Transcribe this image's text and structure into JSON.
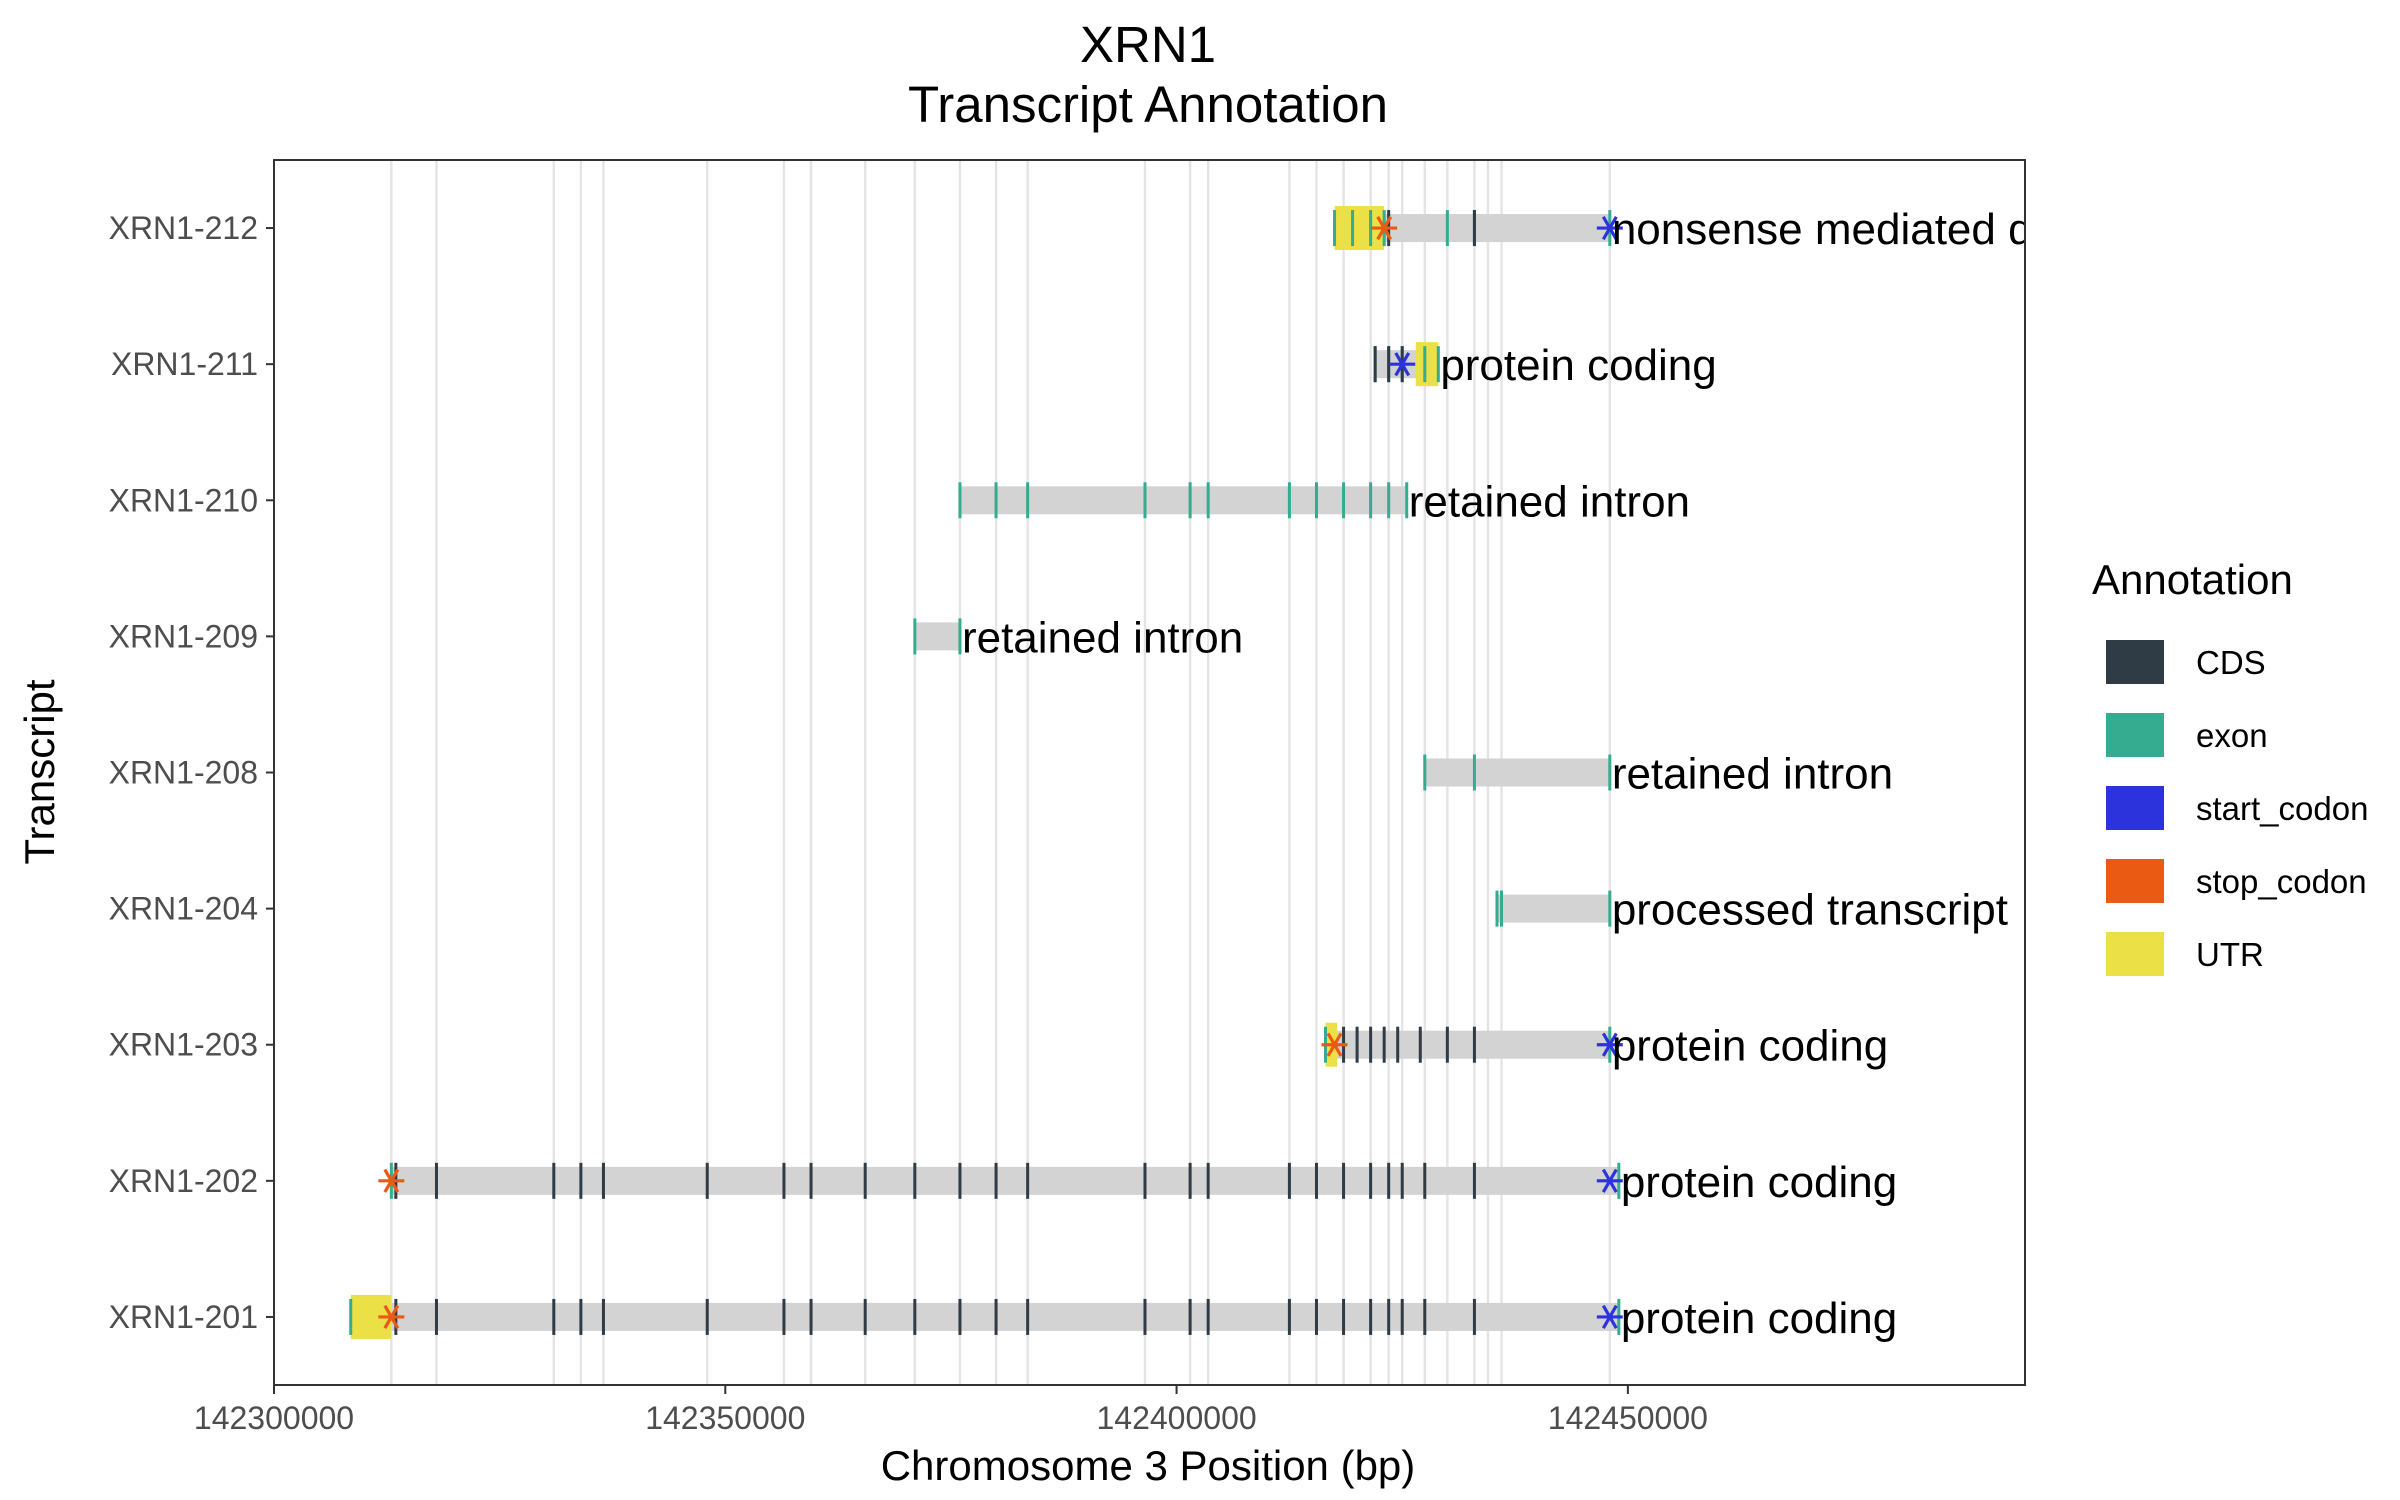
{
  "chart_data": {
    "type": "gantt",
    "title": "XRN1",
    "subtitle": "Transcript Annotation",
    "xlabel": "Chromosome 3 Position (bp)",
    "ylabel": "Transcript",
    "xlim": [
      142300000,
      142494000
    ],
    "x_ticks": [
      142300000,
      142350000,
      142400000,
      142450000
    ],
    "x_tick_labels": [
      "142300000",
      "142350000",
      "142400000",
      "142450000"
    ],
    "legend": {
      "title": "Annotation",
      "placement": "right",
      "entries": [
        {
          "label": "CDS",
          "color": "#2f3b45"
        },
        {
          "label": "exon",
          "color": "#35ab90"
        },
        {
          "label": "start_codon",
          "color": "#2c33dd"
        },
        {
          "label": "stop_codon",
          "color": "#eb5a12"
        },
        {
          "label": "UTR",
          "color": "#ebe046"
        }
      ]
    },
    "exon_positions": [
      142313000,
      142318000,
      142331000,
      142334000,
      142336500,
      142348000,
      142356500,
      142359500,
      142365500,
      142371000,
      142376000,
      142380000,
      142383500,
      142396500,
      142401500,
      142403500,
      142412500,
      142415500,
      142418500,
      142421500,
      142423500,
      142425000,
      142427500,
      142430000,
      142433000,
      142434500,
      142436000,
      142448000
    ],
    "transcripts": [
      {
        "name": "XRN1-212",
        "biotype": "nonsense mediated decay",
        "start": 142417500,
        "end": 142448000,
        "utr": [
          [
            142417500,
            142423000
          ]
        ],
        "exons": [
          142417500,
          142419500,
          142421500,
          142423000,
          142430000,
          142433000,
          142448000
        ],
        "cds": [
          142423500,
          142433000
        ],
        "start_codon": 142448000,
        "stop_codon": 142423000
      },
      {
        "name": "XRN1-211",
        "biotype": "protein coding",
        "start": 142422000,
        "end": 142429000,
        "utr": [
          [
            142426500,
            142429000
          ]
        ],
        "exons": [
          142422000,
          142423500,
          142425000,
          142427500,
          142429000
        ],
        "cds": [
          142422000,
          142423500,
          142425000
        ],
        "start_codon": 142425000,
        "stop_codon": null
      },
      {
        "name": "XRN1-210",
        "biotype": "retained intron",
        "start": 142376000,
        "end": 142425500,
        "utr": [],
        "exons": [
          142376000,
          142380000,
          142383500,
          142396500,
          142401500,
          142403500,
          142412500,
          142415500,
          142418500,
          142421500,
          142423500,
          142425500
        ],
        "cds": [],
        "start_codon": null,
        "stop_codon": null
      },
      {
        "name": "XRN1-209",
        "biotype": "retained intron",
        "start": 142371000,
        "end": 142376000,
        "utr": [],
        "exons": [
          142371000,
          142376000
        ],
        "cds": [],
        "start_codon": null,
        "stop_codon": null
      },
      {
        "name": "XRN1-208",
        "biotype": "retained intron",
        "start": 142427500,
        "end": 142448000,
        "utr": [],
        "exons": [
          142427500,
          142433000,
          142448000
        ],
        "cds": [],
        "start_codon": null,
        "stop_codon": null
      },
      {
        "name": "XRN1-204",
        "biotype": "processed transcript",
        "start": 142435500,
        "end": 142448000,
        "utr": [],
        "exons": [
          142435500,
          142436000,
          142448000
        ],
        "cds": [],
        "start_codon": null,
        "stop_codon": null
      },
      {
        "name": "XRN1-203",
        "biotype": "protein coding",
        "start": 142416500,
        "end": 142448000,
        "utr": [
          [
            142416500,
            142417800
          ]
        ],
        "exons": [
          142416500,
          142448000
        ],
        "cds": [
          142418500,
          142420000,
          142421500,
          142423000,
          142424500,
          142427000,
          142430000,
          142433000
        ],
        "start_codon": 142448000,
        "stop_codon": 142417500
      },
      {
        "name": "XRN1-202",
        "biotype": "protein coding",
        "start": 142313000,
        "end": 142449000,
        "utr": [],
        "exons": [
          142313000,
          142449000
        ],
        "cds": [
          142313500,
          142318000,
          142331000,
          142334000,
          142336500,
          142348000,
          142356500,
          142359500,
          142365500,
          142371000,
          142376000,
          142380000,
          142383500,
          142396500,
          142401500,
          142403500,
          142412500,
          142415500,
          142418500,
          142421500,
          142423500,
          142425000,
          142427500,
          142433000
        ],
        "start_codon": 142448000,
        "stop_codon": 142313000
      },
      {
        "name": "XRN1-201",
        "biotype": "protein coding",
        "start": 142308500,
        "end": 142449000,
        "utr": [
          [
            142308500,
            142313000
          ]
        ],
        "exons": [
          142308500,
          142449000
        ],
        "cds": [
          142313500,
          142318000,
          142331000,
          142334000,
          142336500,
          142348000,
          142356500,
          142359500,
          142365500,
          142371000,
          142376000,
          142380000,
          142383500,
          142396500,
          142401500,
          142403500,
          142412500,
          142415500,
          142418500,
          142421500,
          142423500,
          142425000,
          142427500,
          142433000
        ],
        "start_codon": 142448000,
        "stop_codon": 142313000
      }
    ],
    "grid": true
  }
}
